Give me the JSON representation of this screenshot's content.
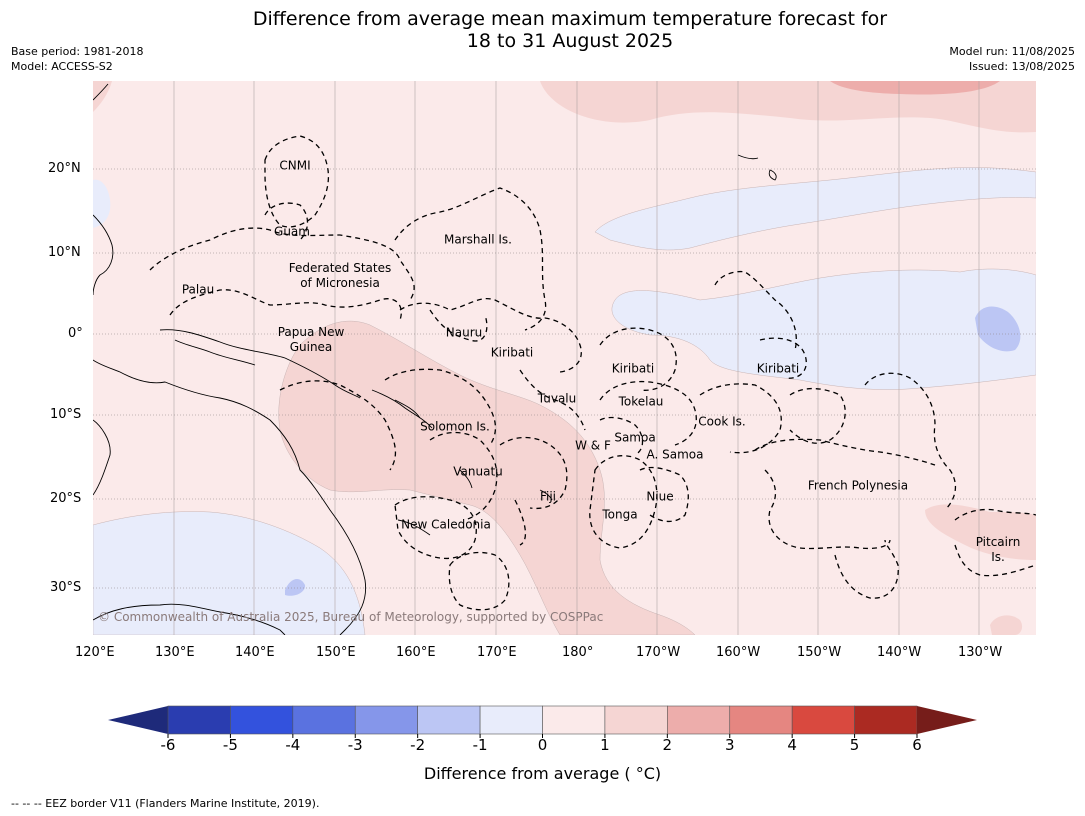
{
  "title_line1": "Difference from average mean maximum temperature forecast for",
  "title_line2": "18 to 31 August 2025",
  "meta": {
    "base_period": "Base period: 1981-2018",
    "model": "Model: ACCESS-S2",
    "model_run": "Model run: 11/08/2025",
    "issued": "Issued: 13/08/2025"
  },
  "axes": {
    "lon_ticks": [
      "120°E",
      "130°E",
      "140°E",
      "150°E",
      "160°E",
      "170°E",
      "180°",
      "170°W",
      "160°W",
      "150°W",
      "140°W",
      "130°W"
    ],
    "lat_ticks": [
      "20°N",
      "10°N",
      "0°",
      "10°S",
      "20°S",
      "30°S"
    ]
  },
  "regions": {
    "cnmi": "CNMI",
    "guam": "Guam",
    "palau": "Palau",
    "fsm_1": "Federated States",
    "fsm_2": "of Micronesia",
    "marshall": "Marshall Is.",
    "png_1": "Papua New",
    "png_2": "Guinea",
    "nauru": "Nauru",
    "kiribati_w": "Kiribati",
    "kiribati_c": "Kiribati",
    "kiribati_e": "Kiribati",
    "tuvalu": "Tuvalu",
    "tokelau": "Tokelau",
    "solomon": "Solomon Is.",
    "wf": "W & F",
    "samoa": "Samoa",
    "asamoa": "A. Samoa",
    "cook": "Cook Is.",
    "vanuatu": "Vanuatu",
    "fiji": "Fiji",
    "niue": "Niue",
    "tonga": "Tonga",
    "new_caledonia": "New Caledonia",
    "french_polynesia": "French Polynesia",
    "pitcairn_1": "Pitcairn",
    "pitcairn_2": "Is."
  },
  "copyright": "© Commonwealth of Australia 2025, Bureau of Meteorology, supported by COSPPac",
  "colorbar": {
    "labels": [
      "-6",
      "-5",
      "-4",
      "-3",
      "-2",
      "-1",
      "0",
      "1",
      "2",
      "3",
      "4",
      "5",
      "6"
    ],
    "colors": [
      "#2a3db0",
      "#3352dd",
      "#5a72e0",
      "#8596ea",
      "#bcc6f4",
      "#e8ecfb",
      "#fbeaea",
      "#f5d5d3",
      "#edadab",
      "#e58681",
      "#d9493f",
      "#ab2a22"
    ],
    "under_color": "#1e2a7a",
    "over_color": "#761d1a",
    "title": "Difference from average ( °C)"
  },
  "footnote": "--  --  -- EEZ border V11 (Flanders Marine Institute, 2019)."
}
